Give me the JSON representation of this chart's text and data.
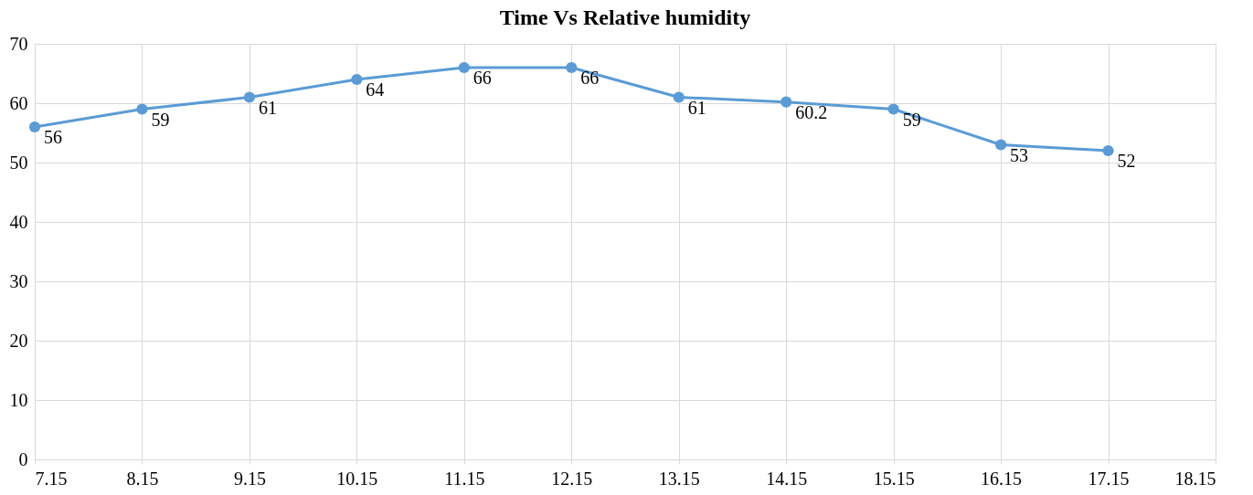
{
  "chart_data": {
    "type": "line",
    "title": "Time   Vs Relative humidity",
    "x": [
      7.15,
      8.15,
      9.15,
      10.15,
      11.15,
      12.15,
      13.15,
      14.15,
      15.15,
      16.15,
      17.15
    ],
    "series": [
      {
        "color": "#5b9bd5",
        "values": [
          56,
          59,
          61,
          64,
          66,
          66,
          61,
          60.2,
          59,
          53,
          52
        ]
      }
    ],
    "xlim": [
      7.15,
      18.15
    ],
    "xticks": [
      7.15,
      8.15,
      9.15,
      10.15,
      11.15,
      12.15,
      13.15,
      14.15,
      15.15,
      16.15,
      17.15,
      18.15
    ],
    "ylim": [
      0,
      70
    ],
    "yticks": [
      0,
      10,
      20,
      30,
      40,
      50,
      60,
      70
    ],
    "grid": true,
    "marker": "circle",
    "line_style": "solid",
    "data_labels": true
  }
}
